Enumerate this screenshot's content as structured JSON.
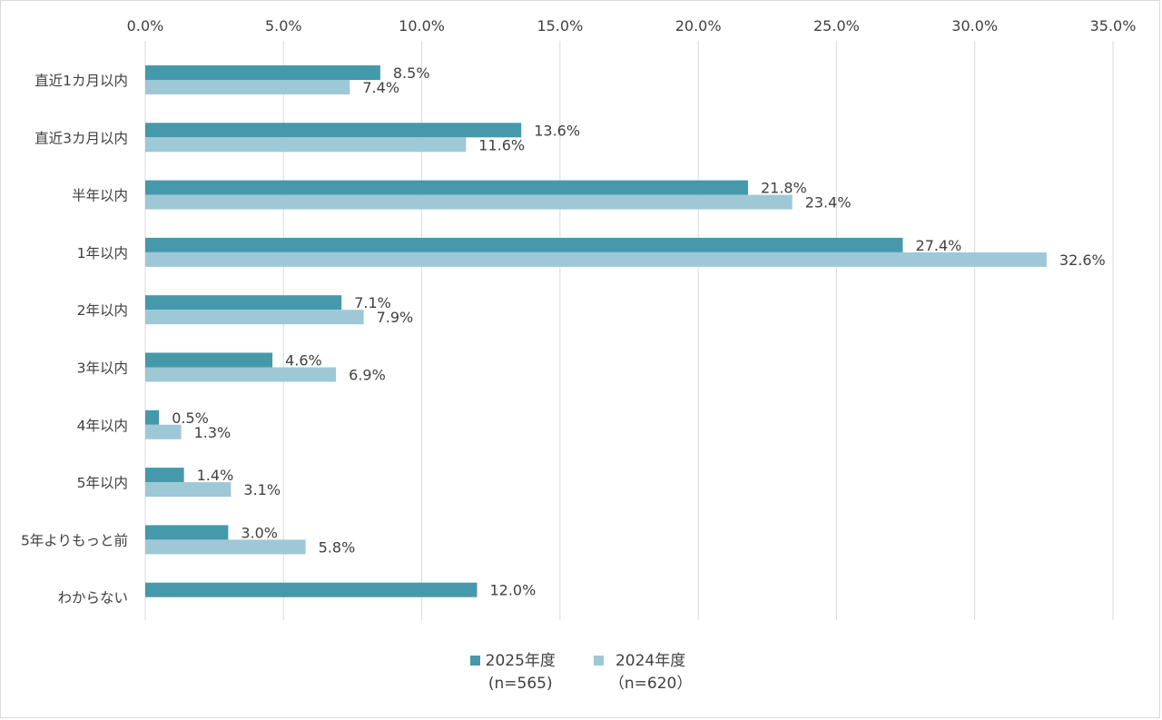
{
  "colors": {
    "series_2025": "#4599ab",
    "series_2024": "#9ec8d6",
    "grid": "#d9d9d9"
  },
  "legend": [
    {
      "label": "2025年度",
      "sublabel": "(n=565)"
    },
    {
      "label": "2024年度",
      "sublabel": "（n=620）"
    }
  ],
  "chart_data": {
    "type": "bar",
    "orientation": "horizontal",
    "categories": [
      "直近1カ月以内",
      "直近3カ月以内",
      "半年以内",
      "1年以内",
      "2年以内",
      "3年以内",
      "4年以内",
      "5年以内",
      "5年よりもっと前",
      "わからない"
    ],
    "series": [
      {
        "name": "2025年度",
        "values": [
          8.5,
          13.6,
          21.8,
          27.4,
          7.1,
          4.6,
          0.5,
          1.4,
          3.0,
          12.0
        ],
        "labels": [
          "8.5%",
          "13.6%",
          "21.8%",
          "27.4%",
          "7.1%",
          "4.6%",
          "0.5%",
          "1.4%",
          "3.0%",
          "12.0%"
        ]
      },
      {
        "name": "2024年度",
        "values": [
          7.4,
          11.6,
          23.4,
          32.6,
          7.9,
          6.9,
          1.3,
          3.1,
          5.8,
          null
        ],
        "labels": [
          "7.4%",
          "11.6%",
          "23.4%",
          "32.6%",
          "7.9%",
          "6.9%",
          "1.3%",
          "3.1%",
          "5.8%",
          null
        ]
      }
    ],
    "xlim": [
      0,
      35
    ],
    "x_ticks": [
      0,
      5,
      10,
      15,
      20,
      25,
      30,
      35
    ],
    "x_tick_labels": [
      "0.0%",
      "5.0%",
      "10.0%",
      "15.0%",
      "20.0%",
      "25.0%",
      "30.0%",
      "35.0%"
    ],
    "x_axis_position": "top",
    "grid": true,
    "legend_position": "bottom"
  }
}
